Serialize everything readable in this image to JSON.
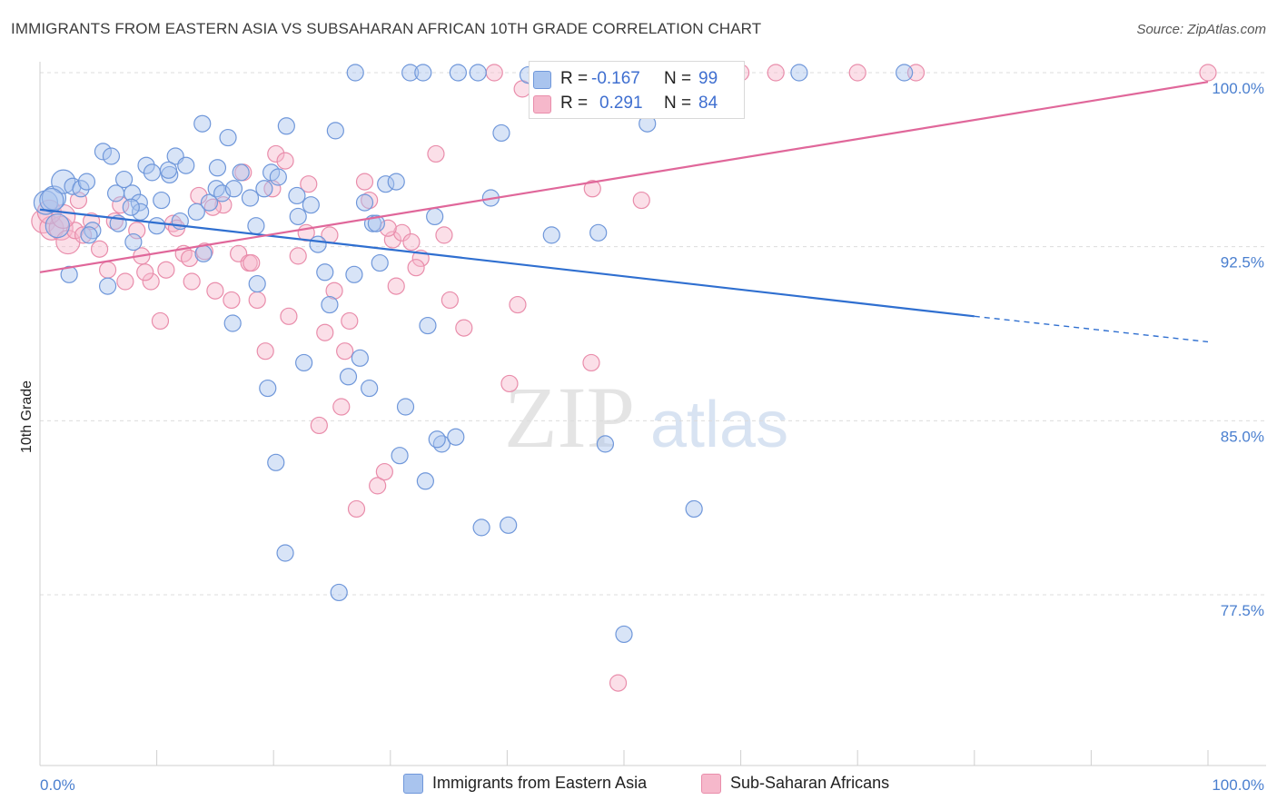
{
  "title": "IMMIGRANTS FROM EASTERN ASIA VS SUBSAHARAN AFRICAN 10TH GRADE CORRELATION CHART",
  "source": "Source: ZipAtlas.com",
  "watermark": {
    "zip": "ZIP",
    "atlas": "atlas"
  },
  "colors": {
    "blue_fill": "#a9c4ee",
    "blue_stroke": "#6f97da",
    "blue_line": "#2f6fd0",
    "pink_fill": "#f6b8cb",
    "pink_stroke": "#e98dab",
    "pink_line": "#e0679a",
    "grid": "#dcdcdc",
    "tick_text": "#4a7fcf"
  },
  "legend": {
    "rows": [
      {
        "r_label": "R =",
        "r_value": "-0.167",
        "n_label": "N =",
        "n_value": "99",
        "color": "blue"
      },
      {
        "r_label": "R =",
        "r_value": "0.291",
        "n_label": "N =",
        "n_value": "84",
        "color": "pink"
      }
    ]
  },
  "bottom_legend": [
    {
      "label": "Immigrants from Eastern Asia",
      "color": "blue"
    },
    {
      "label": "Sub-Saharan Africans",
      "color": "pink"
    }
  ],
  "chart_data": {
    "type": "scatter",
    "title": "IMMIGRANTS FROM EASTERN ASIA VS SUBSAHARAN AFRICAN 10TH GRADE CORRELATION CHART",
    "xlabel": "",
    "ylabel": "10th Grade",
    "xlim": [
      0,
      100
    ],
    "ylim": [
      72.5,
      100.8
    ],
    "x_tick_labels": [
      "0.0%",
      "100.0%"
    ],
    "y_ticks": [
      77.5,
      85.0,
      92.5,
      100.0
    ],
    "y_tick_labels": [
      "77.5%",
      "85.0%",
      "92.5%",
      "100.0%"
    ],
    "grid": true,
    "legend_position": "top-center",
    "series": [
      {
        "name": "Immigrants from Eastern Asia",
        "r": -0.167,
        "n": 99,
        "trend": {
          "x": [
            0,
            80,
            100
          ],
          "y": [
            94.1,
            89.5,
            88.4
          ],
          "solid_until": 80
        },
        "points": [
          [
            0.5,
            94.4
          ],
          [
            1.2,
            94.6
          ],
          [
            1.5,
            93.4
          ],
          [
            2.0,
            95.3
          ],
          [
            2.8,
            95.1
          ],
          [
            3.5,
            95.0
          ],
          [
            4.0,
            95.3
          ],
          [
            4.5,
            93.2
          ],
          [
            5.4,
            96.6
          ],
          [
            6.1,
            96.4
          ],
          [
            6.5,
            94.8
          ],
          [
            7.2,
            95.4
          ],
          [
            7.9,
            94.8
          ],
          [
            8.5,
            94.4
          ],
          [
            9.1,
            96.0
          ],
          [
            9.6,
            95.7
          ],
          [
            10.4,
            94.5
          ],
          [
            11.1,
            95.6
          ],
          [
            11.6,
            96.4
          ],
          [
            12.0,
            93.6
          ],
          [
            13.4,
            94.0
          ],
          [
            13.9,
            97.8
          ],
          [
            14.5,
            94.4
          ],
          [
            15.1,
            95.0
          ],
          [
            15.6,
            94.8
          ],
          [
            16.1,
            97.2
          ],
          [
            16.6,
            95.0
          ],
          [
            17.2,
            95.7
          ],
          [
            18.0,
            94.6
          ],
          [
            18.5,
            93.4
          ],
          [
            19.2,
            95.0
          ],
          [
            19.8,
            95.7
          ],
          [
            20.4,
            95.5
          ],
          [
            21.1,
            97.7
          ],
          [
            22.0,
            94.7
          ],
          [
            22.6,
            87.5
          ],
          [
            23.2,
            94.3
          ],
          [
            23.8,
            92.6
          ],
          [
            24.4,
            91.4
          ],
          [
            25.3,
            97.5
          ],
          [
            27.0,
            100.0
          ],
          [
            27.8,
            94.4
          ],
          [
            28.5,
            93.5
          ],
          [
            29.1,
            91.8
          ],
          [
            29.6,
            95.2
          ],
          [
            30.5,
            95.3
          ],
          [
            31.7,
            100.0
          ],
          [
            32.8,
            100.0
          ],
          [
            33.2,
            89.1
          ],
          [
            33.8,
            93.8
          ],
          [
            34.4,
            84.0
          ],
          [
            35.6,
            84.3
          ],
          [
            35.8,
            100.0
          ],
          [
            37.5,
            100.0
          ],
          [
            37.8,
            80.4
          ],
          [
            38.6,
            94.6
          ],
          [
            39.5,
            97.4
          ],
          [
            40.1,
            80.5
          ],
          [
            41.8,
            99.9
          ],
          [
            42.6,
            100.0
          ],
          [
            43.8,
            93.0
          ],
          [
            47.8,
            93.1
          ],
          [
            48.4,
            84.0
          ],
          [
            50.0,
            75.8
          ],
          [
            52.0,
            97.8
          ],
          [
            56.0,
            81.2
          ],
          [
            56.7,
            100.0
          ],
          [
            65.0,
            100.0
          ],
          [
            74.0,
            100.0
          ],
          [
            1.0,
            94.5
          ],
          [
            2.5,
            91.3
          ],
          [
            5.8,
            90.8
          ],
          [
            8.0,
            92.7
          ],
          [
            10.0,
            93.4
          ],
          [
            12.5,
            96.0
          ],
          [
            14.0,
            92.2
          ],
          [
            15.2,
            95.9
          ],
          [
            16.5,
            89.2
          ],
          [
            18.6,
            90.9
          ],
          [
            19.5,
            86.4
          ],
          [
            20.2,
            83.2
          ],
          [
            21.0,
            79.3
          ],
          [
            22.1,
            93.8
          ],
          [
            24.8,
            90.0
          ],
          [
            25.6,
            77.6
          ],
          [
            26.9,
            91.3
          ],
          [
            27.4,
            87.7
          ],
          [
            28.2,
            86.4
          ],
          [
            30.8,
            83.5
          ],
          [
            31.3,
            85.6
          ],
          [
            33.0,
            82.4
          ],
          [
            34.0,
            84.2
          ],
          [
            26.4,
            86.9
          ],
          [
            28.8,
            93.5
          ],
          [
            8.6,
            94.0
          ],
          [
            6.7,
            93.5
          ],
          [
            4.2,
            93.0
          ],
          [
            7.8,
            94.2
          ],
          [
            11.0,
            95.8
          ]
        ]
      },
      {
        "name": "Sub-Saharan Africans",
        "r": 0.291,
        "n": 84,
        "trend": {
          "x": [
            0,
            100
          ],
          "y": [
            91.4,
            99.6
          ]
        },
        "points": [
          [
            0.3,
            93.6
          ],
          [
            1.0,
            93.3
          ],
          [
            1.8,
            93.3
          ],
          [
            2.4,
            92.7
          ],
          [
            3.0,
            93.2
          ],
          [
            3.7,
            93.0
          ],
          [
            4.4,
            93.6
          ],
          [
            5.1,
            92.4
          ],
          [
            5.8,
            91.5
          ],
          [
            6.4,
            93.6
          ],
          [
            7.3,
            91.0
          ],
          [
            8.3,
            93.2
          ],
          [
            8.7,
            92.1
          ],
          [
            9.5,
            91.0
          ],
          [
            10.3,
            89.3
          ],
          [
            10.8,
            91.5
          ],
          [
            11.4,
            93.5
          ],
          [
            12.3,
            92.2
          ],
          [
            12.8,
            92.0
          ],
          [
            13.6,
            94.7
          ],
          [
            14.1,
            92.3
          ],
          [
            15.0,
            90.6
          ],
          [
            15.7,
            94.3
          ],
          [
            16.4,
            90.2
          ],
          [
            17.0,
            92.2
          ],
          [
            17.9,
            91.8
          ],
          [
            18.6,
            90.2
          ],
          [
            19.3,
            88.0
          ],
          [
            20.2,
            96.5
          ],
          [
            21.3,
            89.5
          ],
          [
            22.1,
            92.1
          ],
          [
            22.8,
            93.1
          ],
          [
            23.9,
            84.8
          ],
          [
            24.4,
            88.8
          ],
          [
            25.2,
            90.6
          ],
          [
            25.8,
            85.6
          ],
          [
            26.5,
            89.3
          ],
          [
            27.1,
            81.2
          ],
          [
            28.2,
            94.5
          ],
          [
            28.9,
            82.2
          ],
          [
            29.5,
            82.8
          ],
          [
            30.2,
            92.8
          ],
          [
            31.0,
            93.1
          ],
          [
            31.8,
            92.7
          ],
          [
            32.6,
            92.0
          ],
          [
            33.9,
            96.5
          ],
          [
            35.1,
            90.2
          ],
          [
            38.9,
            100.0
          ],
          [
            40.2,
            86.6
          ],
          [
            40.9,
            90.0
          ],
          [
            41.3,
            99.3
          ],
          [
            45.7,
            99.3
          ],
          [
            47.3,
            95.0
          ],
          [
            49.5,
            73.7
          ],
          [
            51.5,
            94.5
          ],
          [
            53.0,
            100.0
          ],
          [
            56.5,
            100.0
          ],
          [
            60.0,
            100.0
          ],
          [
            63.0,
            100.0
          ],
          [
            70.0,
            100.0
          ],
          [
            75.0,
            100.0
          ],
          [
            100.0,
            100.0
          ],
          [
            0.8,
            94.0
          ],
          [
            2.0,
            93.8
          ],
          [
            3.3,
            94.5
          ],
          [
            6.9,
            94.3
          ],
          [
            9.0,
            91.4
          ],
          [
            11.7,
            93.3
          ],
          [
            13.0,
            91.0
          ],
          [
            14.8,
            94.2
          ],
          [
            17.4,
            95.7
          ],
          [
            18.1,
            91.8
          ],
          [
            19.9,
            95.0
          ],
          [
            21.0,
            96.2
          ],
          [
            23.0,
            95.2
          ],
          [
            24.8,
            93.0
          ],
          [
            26.1,
            88.0
          ],
          [
            27.8,
            95.3
          ],
          [
            29.8,
            93.3
          ],
          [
            30.5,
            90.8
          ],
          [
            32.2,
            91.6
          ],
          [
            34.6,
            93.0
          ],
          [
            36.3,
            89.0
          ],
          [
            47.2,
            87.5
          ]
        ]
      }
    ]
  }
}
